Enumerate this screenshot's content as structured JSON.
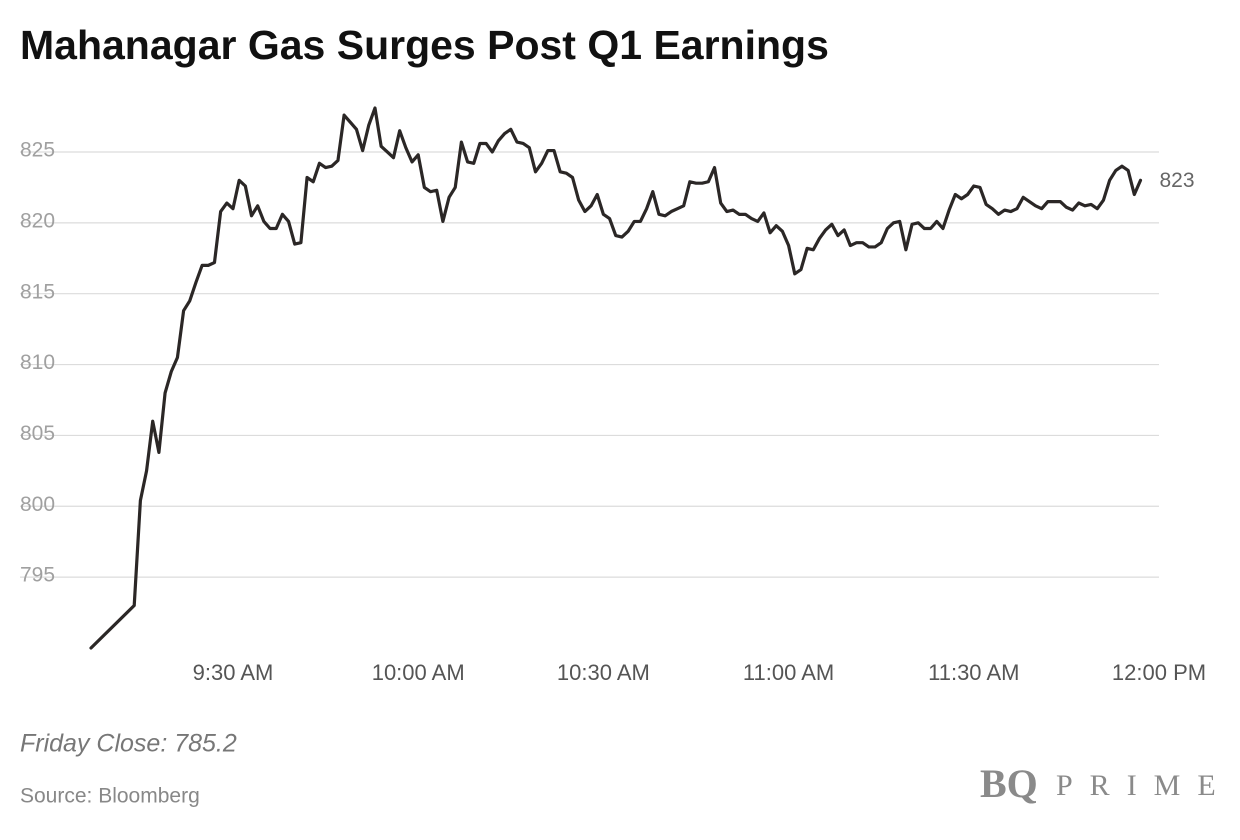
{
  "chart_data": {
    "type": "line",
    "title": "Mahanagar Gas Surges Post Q1 Earnings",
    "note": "Friday Close: 785.2",
    "source": "Source: Bloomberg",
    "logo": [
      "BQ",
      "PRIME"
    ],
    "color": "#2b2726",
    "grid": true,
    "xlim": [
      547,
      720
    ],
    "xticks": [
      {
        "value": 570,
        "label": "9:30 AM"
      },
      {
        "value": 600,
        "label": "10:00 AM"
      },
      {
        "value": 630,
        "label": "10:30 AM"
      },
      {
        "value": 660,
        "label": "11:00 AM"
      },
      {
        "value": 690,
        "label": "11:30 AM"
      },
      {
        "value": 720,
        "label": "12:00 PM"
      }
    ],
    "ylim": [
      790,
      829
    ],
    "yticks": [
      795,
      800,
      805,
      810,
      815,
      820,
      825
    ],
    "x": [
      547,
      554,
      555,
      556,
      557,
      558,
      559,
      560,
      561,
      562,
      563,
      564,
      565,
      566,
      567,
      568,
      569,
      570,
      571,
      572,
      573,
      574,
      575,
      576,
      577,
      578,
      579,
      580,
      581,
      582,
      583,
      584,
      585,
      586,
      587,
      588,
      589,
      590,
      591,
      592,
      593,
      594,
      595,
      596,
      597,
      598,
      599,
      600,
      601,
      602,
      603,
      604,
      605,
      606,
      607,
      608,
      609,
      610,
      611,
      612,
      613,
      614,
      615,
      616,
      617,
      618,
      619,
      620,
      621,
      622,
      623,
      624,
      625,
      626,
      627,
      628,
      629,
      630,
      631,
      632,
      633,
      634,
      635,
      636,
      637,
      638,
      639,
      640,
      641,
      642,
      643,
      644,
      645,
      646,
      647,
      648,
      649,
      650,
      651,
      652,
      653,
      654,
      655,
      656,
      657,
      658,
      659,
      660,
      661,
      662,
      663,
      664,
      665,
      666,
      667,
      668,
      669,
      670,
      671,
      672,
      673,
      674,
      675,
      676,
      677,
      678,
      679,
      680,
      681,
      682,
      683,
      684,
      685,
      686,
      687,
      688,
      689,
      690,
      691,
      692,
      693,
      694,
      695,
      696,
      697,
      698,
      699,
      700,
      701,
      702,
      703,
      704,
      705,
      706,
      707,
      708,
      709,
      710,
      711,
      712,
      713,
      714,
      715,
      716,
      717
    ],
    "values": [
      790.0,
      793.0,
      800.4,
      802.5,
      806.0,
      803.8,
      808.0,
      809.5,
      810.5,
      813.8,
      814.5,
      815.8,
      817.0,
      817.0,
      817.2,
      820.8,
      821.4,
      821.0,
      823.0,
      822.6,
      820.5,
      821.2,
      820.1,
      819.6,
      819.6,
      820.6,
      820.1,
      818.5,
      818.6,
      823.2,
      822.9,
      824.2,
      823.9,
      824.0,
      824.4,
      827.6,
      827.1,
      826.6,
      825.1,
      826.9,
      828.1,
      825.4,
      825.0,
      824.6,
      826.5,
      825.3,
      824.3,
      824.8,
      822.5,
      822.2,
      822.3,
      820.1,
      821.8,
      822.5,
      825.7,
      824.3,
      824.2,
      825.6,
      825.6,
      825.0,
      825.8,
      826.3,
      826.6,
      825.7,
      825.6,
      825.3,
      823.6,
      824.2,
      825.1,
      825.1,
      823.6,
      823.5,
      823.2,
      821.6,
      820.8,
      821.2,
      822.0,
      820.6,
      820.3,
      819.1,
      819.0,
      819.4,
      820.1,
      820.1,
      821.0,
      822.2,
      820.6,
      820.5,
      820.8,
      821.0,
      821.2,
      822.9,
      822.8,
      822.8,
      822.9,
      823.9,
      821.4,
      820.8,
      820.9,
      820.6,
      820.6,
      820.3,
      820.1,
      820.7,
      819.3,
      819.8,
      819.4,
      818.4,
      816.4,
      816.7,
      818.2,
      818.1,
      818.9,
      819.5,
      819.9,
      819.1,
      819.5,
      818.4,
      818.6,
      818.6,
      818.3,
      818.3,
      818.6,
      819.6,
      820.0,
      820.1,
      818.1,
      819.9,
      820.0,
      819.6,
      819.6,
      820.1,
      819.6,
      820.9,
      822.0,
      821.7,
      822.0,
      822.6,
      822.5,
      821.3,
      821.0,
      820.6,
      820.9,
      820.8,
      821.0,
      821.8,
      821.5,
      821.2,
      821.0,
      821.5,
      821.5,
      821.5,
      821.1,
      820.9,
      821.4,
      821.2,
      821.3,
      821.0,
      821.6,
      823.0,
      823.7,
      824.0,
      823.7,
      822.0,
      823.0
    ],
    "end_label": "823"
  }
}
